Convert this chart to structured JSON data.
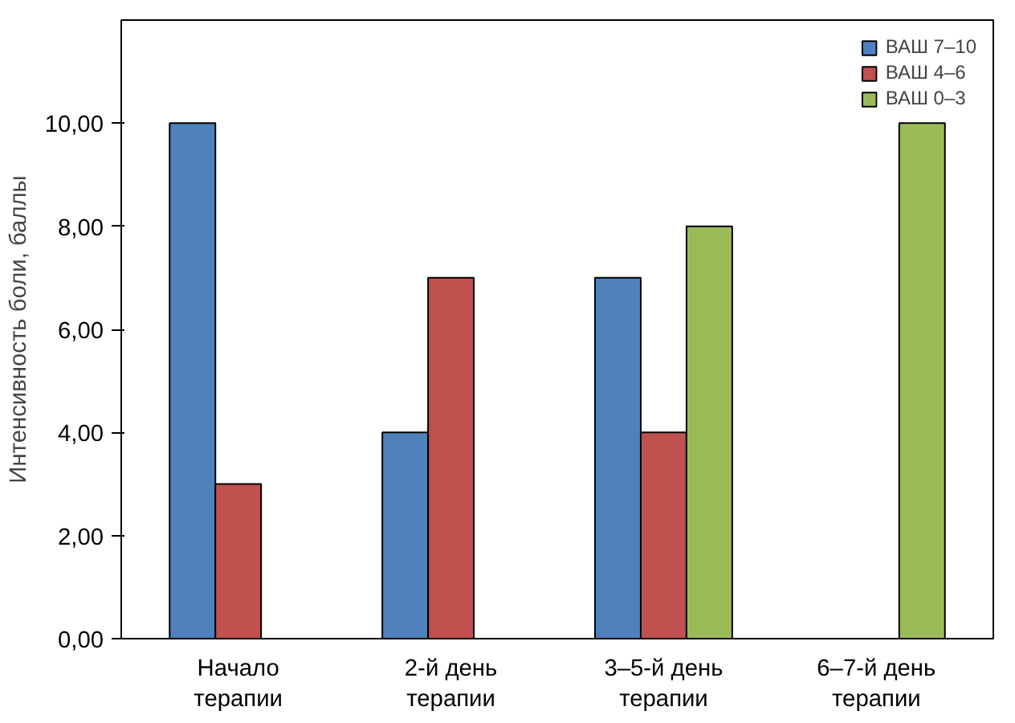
{
  "chart_data": {
    "type": "bar",
    "ylabel": "Интенсивность боли, баллы",
    "categories": [
      "Начало\nтерапии",
      "2-й день\nтерапии",
      "3–5-й день\nтерапии",
      "6–7-й день\nтерапии"
    ],
    "series": [
      {
        "name": "ВАШ 7–10",
        "color": "#4f81bd",
        "values": [
          10,
          4,
          7,
          null
        ]
      },
      {
        "name": "ВАШ 4–6",
        "color": "#c0504d",
        "values": [
          3,
          7,
          4,
          null
        ]
      },
      {
        "name": "ВАШ 0–3",
        "color": "#9bbb59",
        "values": [
          null,
          null,
          8,
          10
        ]
      }
    ],
    "ylim": [
      0,
      12
    ],
    "yticks": [
      {
        "value": 0,
        "label": "0,00"
      },
      {
        "value": 2,
        "label": "2,00"
      },
      {
        "value": 4,
        "label": "4,00"
      },
      {
        "value": 6,
        "label": "6,00"
      },
      {
        "value": 8,
        "label": "8,00"
      },
      {
        "value": 10,
        "label": "10,00"
      }
    ],
    "grid": false,
    "legend": "top right"
  }
}
